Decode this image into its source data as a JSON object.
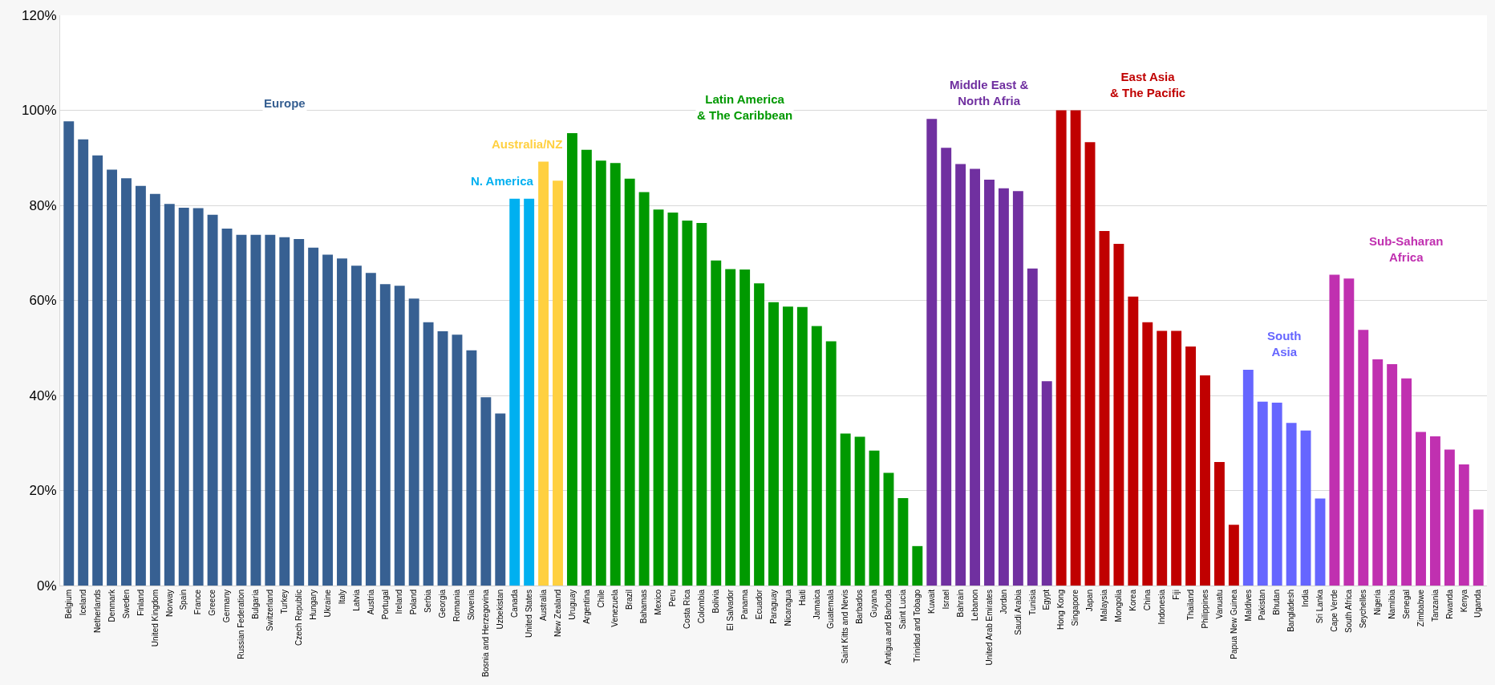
{
  "chart_data": {
    "type": "bar",
    "categories": [
      "Belgium",
      "Iceland",
      "Netherlands",
      "Denmark",
      "Sweden",
      "Finland",
      "United Kingdom",
      "Norway",
      "Spain",
      "France",
      "Greece",
      "Germany",
      "Russian Federation",
      "Bulgaria",
      "Switzerland",
      "Turkey",
      "Czech Republic",
      "Hungary",
      "Ukraine",
      "Italy",
      "Latvia",
      "Austria",
      "Portugal",
      "Ireland",
      "Poland",
      "Serbia",
      "Georgia",
      "Romania",
      "Slovenia",
      "Bosnia and Herzegovina",
      "Uzbekistan",
      "Canada",
      "United States",
      "Australia",
      "New Zealand",
      "Uruguay",
      "Argentina",
      "Chile",
      "Venezuela",
      "Brazil",
      "Bahamas",
      "Mexico",
      "Peru",
      "Costa Rica",
      "Colombia",
      "Bolivia",
      "El Salvador",
      "Panama",
      "Ecuador",
      "Paraguay",
      "Nicaragua",
      "Haiti",
      "Jamaica",
      "Guatemala",
      "Saint Kitts and Nevis",
      "Barbados",
      "Guyana",
      "Antigua and Barbuda",
      "Saint Lucia",
      "Trinidad and Tobago",
      "Kuwait",
      "Israel",
      "Bahrain",
      "Lebanon",
      "United Arab Emirates",
      "Jordan",
      "Saudi Arabia",
      "Tunisia",
      "Egypt",
      "Hong Kong",
      "Singapore",
      "Japan",
      "Malaysia",
      "Mongolia",
      "Korea",
      "China",
      "Indonesia",
      "Fiji",
      "Thailand",
      "Philippines",
      "Vanuatu",
      "Papua New Guinea",
      "Maldives",
      "Pakistan",
      "Bhutan",
      "Bangladesh",
      "India",
      "Sri Lanka",
      "Cape Verde",
      "South Africa",
      "Seychelles",
      "Nigeria",
      "Namibia",
      "Senegal",
      "Zimbabwe",
      "Tanzania",
      "Rwanda",
      "Kenya",
      "Uganda"
    ],
    "series": [
      {
        "name": "Europe",
        "color": "#376092",
        "values": [
          97.7,
          93.9,
          90.5,
          87.5,
          85.7,
          84.1,
          82.4,
          80.3,
          79.5,
          79.4,
          78.0,
          75.1,
          73.8,
          73.8,
          73.8,
          73.3,
          72.9,
          71.1,
          69.6,
          68.8,
          67.3,
          65.8,
          63.4,
          63.1,
          60.4,
          55.4,
          53.5,
          52.8,
          49.5,
          39.6,
          36.2,
          null,
          null,
          null,
          null,
          null,
          null,
          null,
          null,
          null,
          null,
          null,
          null,
          null,
          null,
          null,
          null,
          null,
          null,
          null,
          null,
          null,
          null,
          null,
          null,
          null,
          null,
          null,
          null,
          null,
          null,
          null,
          null,
          null,
          null,
          null,
          null,
          null,
          null,
          null,
          null,
          null,
          null,
          null,
          null,
          null,
          null,
          null,
          null,
          null,
          null,
          null,
          null,
          null,
          null,
          null,
          null,
          null,
          null,
          null,
          null,
          null,
          null,
          null,
          null,
          null,
          null,
          null,
          null
        ]
      },
      {
        "name": "N. America",
        "color": "#00b0f0",
        "values": [
          null,
          null,
          null,
          null,
          null,
          null,
          null,
          null,
          null,
          null,
          null,
          null,
          null,
          null,
          null,
          null,
          null,
          null,
          null,
          null,
          null,
          null,
          null,
          null,
          null,
          null,
          null,
          null,
          null,
          null,
          null,
          81.4,
          81.4,
          null,
          null,
          null,
          null,
          null,
          null,
          null,
          null,
          null,
          null,
          null,
          null,
          null,
          null,
          null,
          null,
          null,
          null,
          null,
          null,
          null,
          null,
          null,
          null,
          null,
          null,
          null,
          null,
          null,
          null,
          null,
          null,
          null,
          null,
          null,
          null,
          null,
          null,
          null,
          null,
          null,
          null,
          null,
          null,
          null,
          null,
          null,
          null,
          null,
          null,
          null,
          null,
          null,
          null,
          null,
          null,
          null,
          null,
          null,
          null,
          null,
          null,
          null,
          null,
          null,
          null
        ]
      },
      {
        "name": "Australia/NZ",
        "color": "#ffd040",
        "values": [
          null,
          null,
          null,
          null,
          null,
          null,
          null,
          null,
          null,
          null,
          null,
          null,
          null,
          null,
          null,
          null,
          null,
          null,
          null,
          null,
          null,
          null,
          null,
          null,
          null,
          null,
          null,
          null,
          null,
          null,
          null,
          null,
          null,
          89.2,
          85.2,
          null,
          null,
          null,
          null,
          null,
          null,
          null,
          null,
          null,
          null,
          null,
          null,
          null,
          null,
          null,
          null,
          null,
          null,
          null,
          null,
          null,
          null,
          null,
          null,
          null,
          null,
          null,
          null,
          null,
          null,
          null,
          null,
          null,
          null,
          null,
          null,
          null,
          null,
          null,
          null,
          null,
          null,
          null,
          null,
          null,
          null,
          null,
          null,
          null,
          null,
          null,
          null,
          null,
          null,
          null,
          null,
          null,
          null,
          null,
          null,
          null,
          null,
          null,
          null
        ]
      },
      {
        "name": "Latin America\n& The Caribbean",
        "color": "#009900",
        "values": [
          null,
          null,
          null,
          null,
          null,
          null,
          null,
          null,
          null,
          null,
          null,
          null,
          null,
          null,
          null,
          null,
          null,
          null,
          null,
          null,
          null,
          null,
          null,
          null,
          null,
          null,
          null,
          null,
          null,
          null,
          null,
          null,
          null,
          null,
          null,
          95.2,
          91.7,
          89.4,
          88.9,
          85.6,
          82.8,
          79.1,
          78.5,
          76.8,
          76.3,
          68.4,
          66.6,
          66.5,
          63.6,
          59.6,
          58.7,
          58.6,
          54.6,
          51.4,
          32.0,
          31.3,
          28.4,
          23.7,
          18.4,
          8.3,
          null,
          null,
          null,
          null,
          null,
          null,
          null,
          null,
          null,
          null,
          null,
          null,
          null,
          null,
          null,
          null,
          null,
          null,
          null,
          null,
          null,
          null,
          null,
          null,
          null,
          null,
          null,
          null,
          null,
          null,
          null,
          null,
          null,
          null,
          null,
          null,
          null,
          null,
          null
        ]
      },
      {
        "name": "Middle East &\nNorth Afria",
        "color": "#7030a0",
        "values": [
          null,
          null,
          null,
          null,
          null,
          null,
          null,
          null,
          null,
          null,
          null,
          null,
          null,
          null,
          null,
          null,
          null,
          null,
          null,
          null,
          null,
          null,
          null,
          null,
          null,
          null,
          null,
          null,
          null,
          null,
          null,
          null,
          null,
          null,
          null,
          null,
          null,
          null,
          null,
          null,
          null,
          null,
          null,
          null,
          null,
          null,
          null,
          null,
          null,
          null,
          null,
          null,
          null,
          null,
          null,
          null,
          null,
          null,
          null,
          null,
          98.2,
          92.1,
          88.7,
          87.7,
          85.4,
          83.6,
          83.0,
          66.7,
          43.0,
          null,
          null,
          null,
          null,
          null,
          null,
          null,
          null,
          null,
          null,
          null,
          null,
          null,
          null,
          null,
          null,
          null,
          null,
          null,
          null,
          null,
          null,
          null,
          null,
          null,
          null,
          null,
          null,
          null,
          null
        ]
      },
      {
        "name": "East Asia\n& The Pacific",
        "color": "#c00000",
        "values": [
          null,
          null,
          null,
          null,
          null,
          null,
          null,
          null,
          null,
          null,
          null,
          null,
          null,
          null,
          null,
          null,
          null,
          null,
          null,
          null,
          null,
          null,
          null,
          null,
          null,
          null,
          null,
          null,
          null,
          null,
          null,
          null,
          null,
          null,
          null,
          null,
          null,
          null,
          null,
          null,
          null,
          null,
          null,
          null,
          null,
          null,
          null,
          null,
          null,
          null,
          null,
          null,
          null,
          null,
          null,
          null,
          null,
          null,
          null,
          null,
          null,
          null,
          null,
          null,
          null,
          null,
          null,
          null,
          null,
          100,
          100,
          93.3,
          74.6,
          71.9,
          60.8,
          55.4,
          53.6,
          53.6,
          50.3,
          44.2,
          26.0,
          12.8,
          null,
          null,
          null,
          null,
          null,
          null,
          null,
          null,
          null,
          null,
          null,
          null,
          null,
          null,
          null,
          null,
          null
        ]
      },
      {
        "name": "South\nAsia",
        "color": "#6666ff",
        "values": [
          null,
          null,
          null,
          null,
          null,
          null,
          null,
          null,
          null,
          null,
          null,
          null,
          null,
          null,
          null,
          null,
          null,
          null,
          null,
          null,
          null,
          null,
          null,
          null,
          null,
          null,
          null,
          null,
          null,
          null,
          null,
          null,
          null,
          null,
          null,
          null,
          null,
          null,
          null,
          null,
          null,
          null,
          null,
          null,
          null,
          null,
          null,
          null,
          null,
          null,
          null,
          null,
          null,
          null,
          null,
          null,
          null,
          null,
          null,
          null,
          null,
          null,
          null,
          null,
          null,
          null,
          null,
          null,
          null,
          null,
          null,
          null,
          null,
          null,
          null,
          null,
          null,
          null,
          null,
          null,
          null,
          null,
          45.4,
          38.7,
          38.5,
          34.2,
          32.6,
          18.3,
          null,
          null,
          null,
          null,
          null,
          null,
          null,
          null,
          null,
          null,
          null
        ]
      },
      {
        "name": "Sub-Saharan\nAfrica",
        "color": "#c030b0",
        "values": [
          null,
          null,
          null,
          null,
          null,
          null,
          null,
          null,
          null,
          null,
          null,
          null,
          null,
          null,
          null,
          null,
          null,
          null,
          null,
          null,
          null,
          null,
          null,
          null,
          null,
          null,
          null,
          null,
          null,
          null,
          null,
          null,
          null,
          null,
          null,
          null,
          null,
          null,
          null,
          null,
          null,
          null,
          null,
          null,
          null,
          null,
          null,
          null,
          null,
          null,
          null,
          null,
          null,
          null,
          null,
          null,
          null,
          null,
          null,
          null,
          null,
          null,
          null,
          null,
          null,
          null,
          null,
          null,
          null,
          null,
          null,
          null,
          null,
          null,
          null,
          null,
          null,
          null,
          null,
          null,
          null,
          null,
          null,
          null,
          null,
          null,
          null,
          null,
          65.4,
          64.6,
          53.8,
          47.6,
          46.6,
          43.6,
          32.3,
          31.4,
          28.6,
          25.5,
          16.0
        ]
      }
    ],
    "ylim": [
      0,
      120
    ],
    "yticks": [
      {
        "value": 0,
        "label": "0%"
      },
      {
        "value": 20,
        "label": "20%"
      },
      {
        "value": 40,
        "label": "40%"
      },
      {
        "value": 60,
        "label": "60%"
      },
      {
        "value": 80,
        "label": "80%"
      },
      {
        "value": 100,
        "label": "100%"
      },
      {
        "value": 120,
        "label": "120%"
      }
    ],
    "grid": "y"
  }
}
